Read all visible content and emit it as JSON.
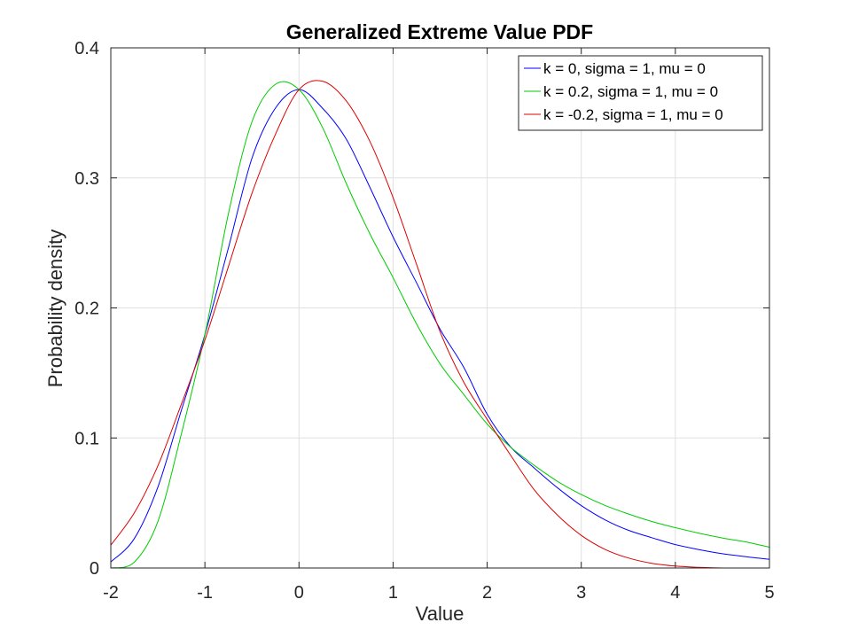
{
  "chart_data": {
    "type": "line",
    "title": "Generalized Extreme Value PDF",
    "xlabel": "Value",
    "ylabel": "Probability density",
    "xlim": [
      -2,
      5
    ],
    "ylim": [
      0,
      0.4
    ],
    "xticks": [
      "-2",
      "-1",
      "0",
      "1",
      "2",
      "3",
      "4",
      "5"
    ],
    "yticks": [
      "0",
      "0.1",
      "0.2",
      "0.3",
      "0.4"
    ],
    "grid": true,
    "legend_position": "top-right",
    "x": [
      -2,
      -1.75,
      -1.5,
      -1.25,
      -1,
      -0.75,
      -0.5,
      -0.25,
      0,
      0.25,
      0.5,
      0.75,
      1,
      1.25,
      1.5,
      1.75,
      2,
      2.25,
      2.5,
      2.75,
      3,
      3.25,
      3.5,
      3.75,
      4,
      4.25,
      4.5,
      4.75,
      5
    ],
    "series": [
      {
        "name": "k = 0, sigma = 1, mu = 0",
        "color": "#0000ff",
        "values": [
          0.0046,
          0.0226,
          0.0622,
          0.1213,
          0.1794,
          0.2463,
          0.3151,
          0.3537,
          0.3679,
          0.3536,
          0.3301,
          0.2933,
          0.2546,
          0.2192,
          0.1836,
          0.1545,
          0.1182,
          0.093,
          0.0769,
          0.0615,
          0.048,
          0.0371,
          0.029,
          0.0233,
          0.018,
          0.0142,
          0.011,
          0.0087,
          0.0067
        ]
      },
      {
        "name": "k = 0.2, sigma = 1, mu = 0",
        "color": "#00cc00",
        "values": [
          0.0,
          0.0045,
          0.0357,
          0.1032,
          0.1793,
          0.2726,
          0.3431,
          0.372,
          0.3679,
          0.3388,
          0.2961,
          0.2575,
          0.2233,
          0.1876,
          0.1569,
          0.1336,
          0.1107,
          0.0929,
          0.079,
          0.0665,
          0.0565,
          0.0482,
          0.0416,
          0.0358,
          0.031,
          0.0268,
          0.0231,
          0.02,
          0.016
        ]
      },
      {
        "name": "k = -0.2, sigma = 1, mu = 0",
        "color": "#dd0000",
        "values": [
          0.0176,
          0.0424,
          0.0786,
          0.126,
          0.1752,
          0.2319,
          0.2881,
          0.3336,
          0.3679,
          0.3744,
          0.3594,
          0.3286,
          0.2849,
          0.2333,
          0.1816,
          0.1431,
          0.1143,
          0.0866,
          0.0602,
          0.0405,
          0.0251,
          0.0144,
          0.0077,
          0.0036,
          0.0015,
          0.0005,
          0.0,
          0.0,
          0.0
        ]
      }
    ]
  }
}
